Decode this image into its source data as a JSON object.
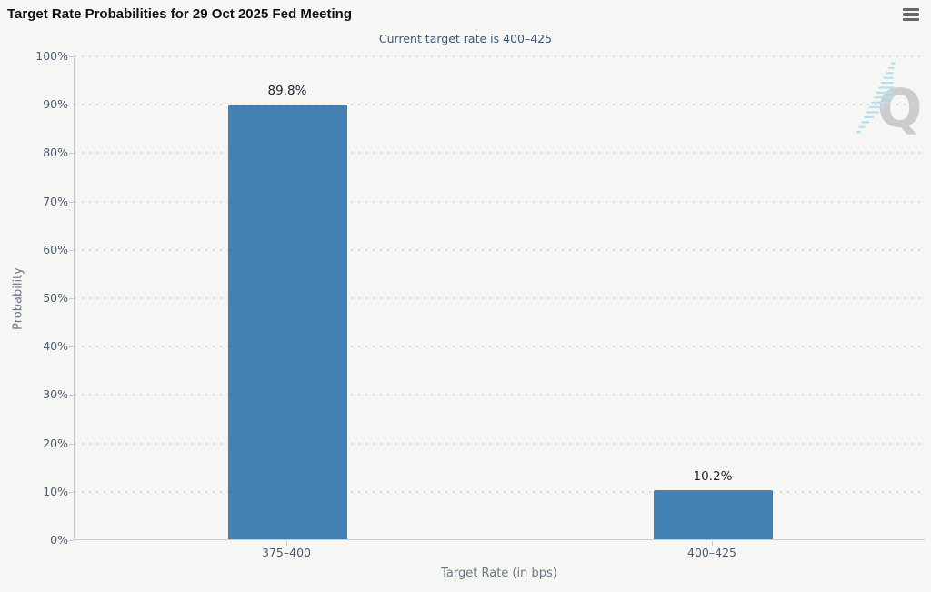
{
  "menu": {
    "icon": "hamburger-icon"
  },
  "chart_data": {
    "type": "bar",
    "title": "Target Rate Probabilities for 29 Oct 2025 Fed Meeting",
    "subtitle": "Current target rate is 400–425",
    "categories": [
      "375–400",
      "400–425"
    ],
    "values": [
      89.8,
      10.2
    ],
    "value_labels": [
      "89.8%",
      "10.2%"
    ],
    "xlabel": "Target Rate (in bps)",
    "ylabel": "Probability",
    "ylim": [
      0,
      100
    ],
    "ytick_step": 10,
    "ytick_suffix": "%",
    "ytick_labels": [
      "0%",
      "10%",
      "20%",
      "30%",
      "40%",
      "50%",
      "60%",
      "70%",
      "80%",
      "90%",
      "100%"
    ],
    "grid": "dotted-horizontal",
    "legend": "none",
    "watermark": "Q",
    "colors": {
      "bar": "#4381b4",
      "background": "#f6f6f5",
      "axis_line": "#c9c9c9",
      "grid_dot": "#dcdcdc",
      "title_text": "#111111",
      "subtitle_text": "#3e576f",
      "tick_text": "#4a5d72",
      "axis_title_text": "#6b7885",
      "data_label_text": "#1c2430",
      "menu_icon": "#676767",
      "watermark_q": "#c8c8c8",
      "watermark_dash": "#aedfec"
    }
  }
}
